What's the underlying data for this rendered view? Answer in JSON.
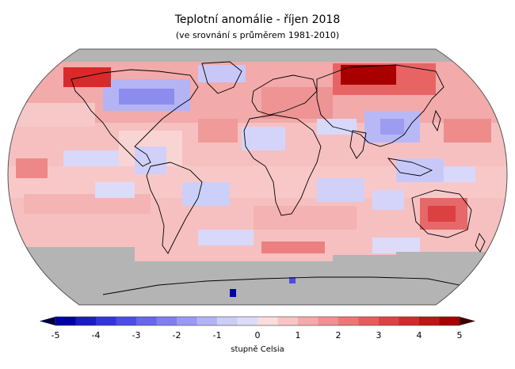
{
  "title": "Teplotní anomálie - říjen 2018",
  "subtitle": "(ve srovnání s průměrem 1981-2010)",
  "colorbar": {
    "min": -5,
    "max": 5,
    "ticks": [
      "-5",
      "-4",
      "-3",
      "-2",
      "-1",
      "0",
      "1",
      "2",
      "3",
      "4",
      "5"
    ],
    "unit_label": "stupně Celsia",
    "colors_negative": [
      "#0000a8",
      "#1a1ac8",
      "#3333e0",
      "#4c4ce8",
      "#6666ee",
      "#7f7ff0",
      "#9999f2",
      "#b3b3f5",
      "#ccccf8",
      "#dcdcfa"
    ],
    "colors_positive": [
      "#fadcdc",
      "#f8c4c4",
      "#f4aaaa",
      "#f09090",
      "#ec7676",
      "#e65c5c",
      "#de4242",
      "#d22a2a",
      "#c21414",
      "#a80000"
    ],
    "end_color_low": "#00003c",
    "end_color_high": "#3c0000"
  },
  "colors": {
    "no_data": "#b4b4b4",
    "base_warm": "#f6c0c0",
    "coastline": "#000000"
  }
}
